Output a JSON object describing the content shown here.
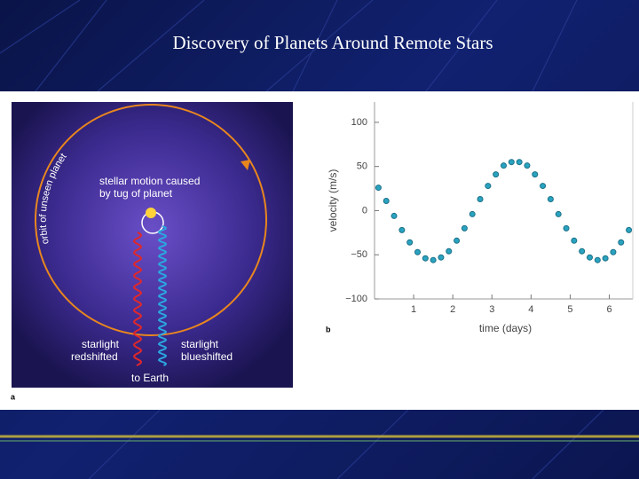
{
  "slide_title": "Discovery of Planets Around Remote Stars",
  "panel_a": {
    "label": "a",
    "orbit_label": "orbit of unseen planet",
    "motion_label": [
      "stellar motion caused",
      "by tug of planet"
    ],
    "red_label": [
      "starlight",
      "redshifted"
    ],
    "blue_label": [
      "starlight",
      "blueshifted"
    ],
    "earth_label": "to Earth"
  },
  "chart_data": {
    "type": "scatter",
    "panel_label": "b",
    "x_label": "time (days)",
    "y_label": "velocity (m/s)",
    "x": [
      0.1,
      0.3,
      0.5,
      0.7,
      0.9,
      1.1,
      1.3,
      1.5,
      1.7,
      1.9,
      2.1,
      2.3,
      2.5,
      2.7,
      2.9,
      3.1,
      3.3,
      3.5,
      3.7,
      3.9,
      4.1,
      4.3,
      4.5,
      4.7,
      4.9,
      5.1,
      5.3,
      5.5,
      5.7,
      5.9,
      6.1,
      6.3,
      6.5
    ],
    "values": [
      26,
      11,
      -6,
      -22,
      -36,
      -47,
      -54,
      -56,
      -53,
      -46,
      -34,
      -20,
      -4,
      13,
      28,
      41,
      51,
      55,
      55,
      51,
      41,
      28,
      13,
      -4,
      -20,
      -34,
      -46,
      -53,
      -56,
      -54,
      -47,
      -36,
      -22
    ],
    "color": "#29a3c0",
    "xlim": [
      0,
      6.6
    ],
    "ylim": [
      -100,
      123
    ],
    "xticks": [
      1,
      2,
      3,
      4,
      5,
      6
    ],
    "yticks": [
      100,
      50,
      0,
      {
        "value": -50,
        "label": "−50"
      },
      {
        "value": -100,
        "label": "−100"
      }
    ]
  }
}
